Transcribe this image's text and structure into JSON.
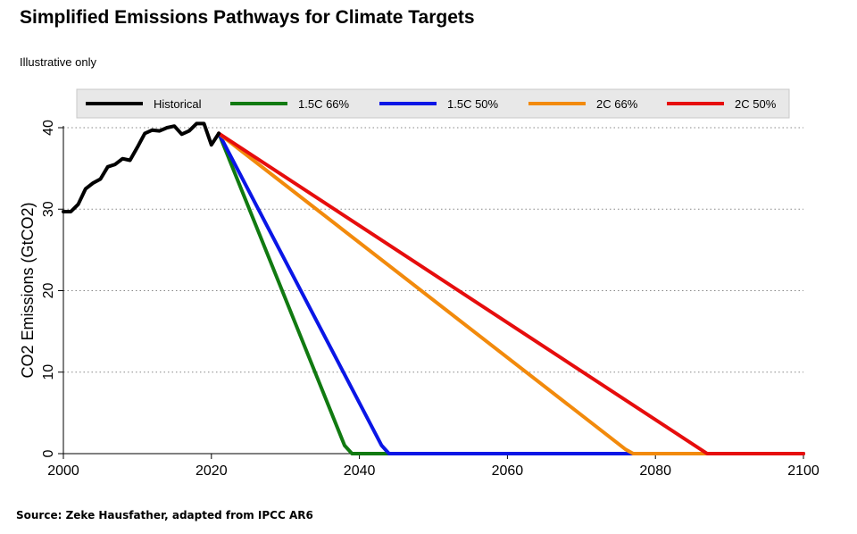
{
  "header": {
    "title": "Simplified Emissions Pathways for Climate Targets",
    "subtitle": "Illustrative only"
  },
  "footer": {
    "source": "Source: Zeke Hausfather, adapted from IPCC AR6"
  },
  "chart_data": {
    "type": "line",
    "ylabel": "CO2 Emissions (GtCO2)",
    "xlabel": "",
    "xlim": [
      2000,
      2100
    ],
    "ylim": [
      0,
      40
    ],
    "xticks": [
      "2000",
      "2020",
      "2040",
      "2060",
      "2080",
      "2100"
    ],
    "yticks": [
      "0",
      "10",
      "20",
      "30",
      "40"
    ],
    "grid": "horizontal dotted",
    "legend_position": "top",
    "series": [
      {
        "name": "Historical",
        "color": "#000000",
        "points": [
          [
            2000,
            29.7
          ],
          [
            2001,
            29.7
          ],
          [
            2002,
            30.6
          ],
          [
            2003,
            32.5
          ],
          [
            2004,
            33.2
          ],
          [
            2005,
            33.7
          ],
          [
            2006,
            35.2
          ],
          [
            2007,
            35.5
          ],
          [
            2008,
            36.2
          ],
          [
            2009,
            36.0
          ],
          [
            2010,
            37.6
          ],
          [
            2011,
            39.3
          ],
          [
            2012,
            39.7
          ],
          [
            2013,
            39.6
          ],
          [
            2014,
            40.0
          ],
          [
            2015,
            40.2
          ],
          [
            2016,
            39.2
          ],
          [
            2017,
            39.6
          ],
          [
            2018,
            40.5
          ],
          [
            2019,
            40.5
          ],
          [
            2020,
            37.9
          ],
          [
            2021,
            39.3
          ]
        ]
      },
      {
        "name": "1.5C 66%",
        "color": "#117a11",
        "points": [
          [
            2021,
            39.3
          ],
          [
            2038,
            1.0
          ],
          [
            2039,
            0
          ],
          [
            2100,
            0
          ]
        ]
      },
      {
        "name": "1.5C 50%",
        "color": "#0a16e6",
        "points": [
          [
            2021,
            39.3
          ],
          [
            2043,
            1.0
          ],
          [
            2044,
            0
          ],
          [
            2100,
            0
          ]
        ]
      },
      {
        "name": "2C 66%",
        "color": "#f28a0c",
        "points": [
          [
            2021,
            39.3
          ],
          [
            2076,
            0.5
          ],
          [
            2077,
            0
          ],
          [
            2100,
            0
          ]
        ]
      },
      {
        "name": "2C 50%",
        "color": "#e60d0d",
        "points": [
          [
            2021,
            39.3
          ],
          [
            2087,
            0
          ],
          [
            2100,
            0
          ]
        ]
      }
    ]
  }
}
